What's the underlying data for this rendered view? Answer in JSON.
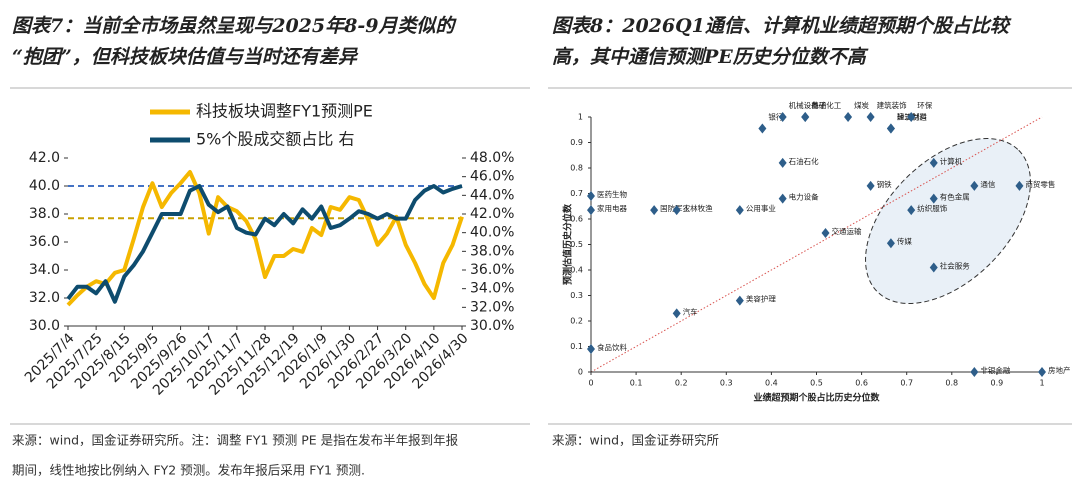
{
  "chart_data": [
    {
      "type": "line",
      "title": [
        "图表7：当前全市场虽然呈现与2025年8-9月类似的",
        "“抱团”，但科技板块估值与当时还有差异"
      ],
      "source": [
        "来源：wind，国金证券研究所。注：调整 FY1 预测 PE 是指在发布半年报到年报",
        "期间，线性地按比例纳入 FY2 预测。发布年报后采用 FY1 预测."
      ],
      "categories": [
        "2025/7/4",
        null,
        null,
        "2025/7/25",
        null,
        null,
        "2025/8/15",
        null,
        null,
        "2025/9/5",
        null,
        null,
        "2025/9/26",
        null,
        null,
        "2025/10/17",
        null,
        null,
        "2025/11/7",
        null,
        null,
        "2025/11/28",
        null,
        null,
        "2025/12/19",
        null,
        null,
        "2026/1/9",
        null,
        null,
        "2026/1/30",
        null,
        null,
        "2026/2/27",
        null,
        null,
        "2026/3/20",
        null,
        null,
        "2026/4/10",
        null,
        null,
        "2026/4/30"
      ],
      "series": [
        {
          "name": "科技板块调整FY1预测PE",
          "color": "#f5b800",
          "values": [
            31.5,
            32.2,
            32.8,
            33.2,
            33.0,
            33.8,
            34.0,
            36.2,
            38.5,
            40.2,
            38.5,
            39.5,
            40.2,
            41.0,
            39.5,
            36.6,
            39.2,
            38.5,
            38.2,
            37.5,
            36.2,
            33.5,
            35.0,
            35.0,
            35.5,
            35.3,
            37.0,
            36.5,
            38.5,
            38.3,
            39.2,
            39.0,
            37.6,
            35.8,
            36.6,
            37.8,
            35.8,
            34.5,
            33.0,
            32.0,
            34.5,
            35.8,
            37.8
          ]
        },
        {
          "name": "5%个股成交额占比 右",
          "color": "#0e4c6e",
          "axis": "y2",
          "values": [
            32.9,
            34.2,
            34.2,
            33.5,
            34.8,
            32.6,
            35.3,
            36.5,
            38.0,
            40.0,
            42.0,
            42.0,
            42.0,
            44.5,
            45.0,
            43.0,
            42.2,
            42.8,
            40.5,
            40.0,
            39.8,
            41.5,
            40.8,
            42.0,
            41.0,
            42.5,
            41.5,
            42.8,
            40.5,
            40.8,
            41.5,
            42.3,
            42.0,
            41.5,
            42.0,
            41.5,
            41.5,
            43.5,
            44.5,
            45.0,
            44.3,
            44.7,
            45.0
          ]
        }
      ],
      "reference_lines": [
        {
          "value": 40.0,
          "color": "#4472c4"
        },
        {
          "value": 37.7,
          "color": "#c8a000"
        }
      ],
      "ylim": [
        30,
        42
      ],
      "yticks": [
        {
          "value": 30,
          "label": "30.0"
        },
        {
          "value": 32,
          "label": "32.0"
        },
        {
          "value": 34,
          "label": "34.0"
        },
        {
          "value": 36,
          "label": "36.0"
        },
        {
          "value": 38,
          "label": "38.0"
        },
        {
          "value": 40,
          "label": "40.0"
        },
        {
          "value": 42,
          "label": "42.0"
        }
      ],
      "y2lim": [
        30,
        48
      ],
      "y2ticks": [
        {
          "value": 30,
          "label": "30.0%"
        },
        {
          "value": 32,
          "label": "32.0%"
        },
        {
          "value": 34,
          "label": "34.0%"
        },
        {
          "value": 36,
          "label": "36.0%"
        },
        {
          "value": 38,
          "label": "38.0%"
        },
        {
          "value": 40,
          "label": "40.0%"
        },
        {
          "value": 42,
          "label": "42.0%"
        },
        {
          "value": 44,
          "label": "44.0%"
        },
        {
          "value": 46,
          "label": "46.0%"
        },
        {
          "value": 48,
          "label": "48.0%"
        }
      ],
      "legend": "top-left"
    },
    {
      "type": "scatter",
      "title": [
        "图表8：2026Q1通信、计算机业绩超预期个股占比较",
        "高，其中通信预测PE历史分位数不高"
      ],
      "source": [
        "来源：wind，国金证券研究所"
      ],
      "xlabel": "业绩超预期个股占比历史分位数",
      "ylabel": "预测估值历史分位数",
      "color": "#2e5e8a",
      "labels": [
        "医药生物",
        "家用电器",
        "国防军工",
        "农林牧渔",
        "公用事业",
        "电力设备",
        "石油石化",
        "银行",
        "机械设备",
        "基础化工",
        "电子",
        "煤炭",
        "建筑装饰",
        "建筑材料",
        "轻工制造",
        "环保",
        "计算机",
        "钢铁",
        "通信",
        "商贸零售",
        "纺织服饰",
        "有色金属",
        "传媒",
        "社会服务",
        "交通运输",
        "汽车",
        "美容护理",
        "食品饮料",
        "非银金融",
        "房地产"
      ],
      "x": [
        0,
        0,
        0.14,
        0.19,
        0.33,
        0.425,
        0.425,
        0.38,
        0.425,
        0.475,
        0.475,
        0.57,
        0.62,
        0.665,
        0.665,
        0.71,
        0.76,
        0.62,
        0.85,
        0.95,
        0.71,
        0.76,
        0.665,
        0.76,
        0.52,
        0.19,
        0.33,
        0,
        0.85,
        1
      ],
      "values": [
        0.69,
        0.635,
        0.635,
        0.635,
        0.635,
        0.68,
        0.82,
        0.955,
        1,
        1,
        1,
        1,
        1,
        0.955,
        0.955,
        1,
        0.82,
        0.73,
        0.73,
        0.73,
        0.635,
        0.68,
        0.505,
        0.41,
        0.545,
        0.23,
        0.28,
        0.09,
        0,
        0
      ],
      "xlim": [
        0,
        1
      ],
      "ylim": [
        0,
        1
      ],
      "xticks": [
        0,
        0.1,
        0.2,
        0.3,
        0.4,
        0.5,
        0.6,
        0.7,
        0.8,
        0.9,
        1
      ],
      "yticks": [
        0,
        0.1,
        0.2,
        0.3,
        0.4,
        0.5,
        0.6,
        0.7,
        0.8,
        0.9,
        1
      ]
    }
  ]
}
